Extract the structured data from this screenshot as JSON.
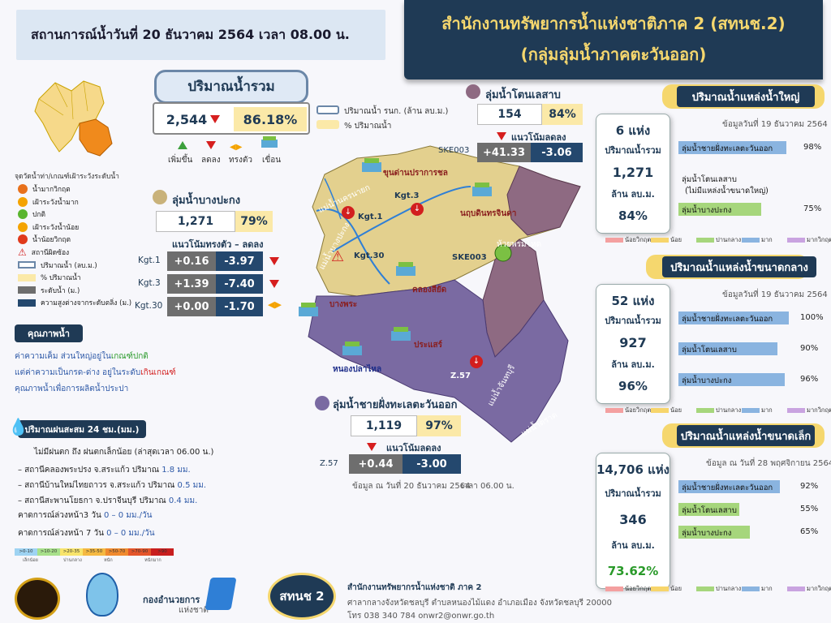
{
  "header": {
    "status_date": "สถานการณ์น้ำวันที่  20 ธันวาคม 2564 เวลา 08.00 น.",
    "org_line1": "สำนักงานทรัพยากรน้ำแห่งชาติภาค 2 (สทนช.2)",
    "org_line2": "(กลุ่มลุ่มน้ำภาคตะวันออก)"
  },
  "total": {
    "title": "ปริมาณน้ำรวม",
    "volume": "2,544",
    "percent": "86.18%",
    "legend_volume": "ปริมาณน้ำ รนก. (ล้าน ลบ.ม.)",
    "legend_percent": "% ปริมาณน้ำ",
    "trend_up": "เพิ่มขึ้น",
    "trend_down": "ลดลง",
    "trend_stable": "ทรงตัว",
    "dam": "เขื่อน"
  },
  "legend": {
    "title": "จุดวัดน้ำท่า/เกณฑ์เฝ้าระวังระดับน้ำ",
    "items": [
      {
        "label": "น้ำมากวิกฤต",
        "color": "#e8711c"
      },
      {
        "label": "เฝ้าระวังน้ำมาก",
        "color": "#f4a300"
      },
      {
        "label": "ปกติ",
        "color": "#5ab52f"
      },
      {
        "label": "เฝ้าระวังน้ำน้อย",
        "color": "#f4a300"
      },
      {
        "label": "น้ำน้อยวิกฤต",
        "color": "#e03a1c"
      },
      {
        "label": "สถานีผิดซ้อง"
      },
      {
        "label": "ปริมาณน้ำ (ลบ.ม.)"
      },
      {
        "label": "% ปริมาณน้ำ"
      },
      {
        "label": "ระดับน้ำ (ม.)"
      },
      {
        "label": "ความสูงต่างจากระดับตลิ่ง (ม.)"
      }
    ]
  },
  "water_quality": {
    "title": "คุณภาพน้ำ",
    "line1_a": "ค่าความเค็ม ส่วนใหญ่อยู่ใน",
    "line1_b": "เกณฑ์ปกติ",
    "line2_a": "แต่ค่าความเป็นกรด-ด่าง อยู่ในระดับ",
    "line2_b": "เกินเกณฑ์",
    "line3": "คุณภาพน้ำเพื่อการผลิตน้ำประปา"
  },
  "rain": {
    "title": "ปริมาณฝนสะสม 24 ชม.(มม.)",
    "summary": "ไม่มีฝนตก ถึง ฝนตกเล็กน้อย (ล่าสุดเวลา 06.00 น.)",
    "stations": [
      {
        "name": "– สถานีคลองพระปรง จ.สระแก้ว  ปริมาณ",
        "value": "1.8 มม."
      },
      {
        "name": "– สถานีบ้านใหม่ไทยถาวร จ.สระแก้ว ปริมาณ",
        "value": "0.5 มม."
      },
      {
        "name": "– สถานีสะพานโยธกา จ.ปราจีนบุรี ปริมาณ",
        "value": "0.4 มม."
      }
    ],
    "forecast3_label": "คาดการณ์ล่วงหน้า3 วัน",
    "forecast3_value": "0 – 0 มม./วัน",
    "forecast7_label": "คาดการณ์ล่วงหน้า 7 วัน",
    "forecast7_value": "0 – 0 มม./วัน",
    "scale": [
      {
        "label": ">0-10",
        "color": "#9ed3f2"
      },
      {
        "label": ">10-20",
        "color": "#a7e08a"
      },
      {
        "label": ">20-35",
        "color": "#f8e46b"
      },
      {
        "label": ">35-50",
        "color": "#f5b942"
      },
      {
        "label": ">50-70",
        "color": "#f08a2e"
      },
      {
        "label": ">70-90",
        "color": "#e4552a"
      },
      {
        "label": ">90",
        "color": "#c81e1e"
      }
    ],
    "scale_words": [
      "เล็กน้อย",
      "ปานกลาง",
      "หนัก",
      "หนักมาก"
    ]
  },
  "bangpakong": {
    "title": "ลุ่มน้ำบางปะกง",
    "volume": "1,271",
    "percent": "79%",
    "trend_title": "แนวโน้มทรงตัว – ลดลง",
    "stations": [
      {
        "code": "Kgt.1",
        "level": "+0.16",
        "diff": "-3.97"
      },
      {
        "code": "Kgt.3",
        "level": "+1.39",
        "diff": "-7.40"
      },
      {
        "code": "Kgt.30",
        "level": "+0.00",
        "diff": "-1.70"
      }
    ]
  },
  "tonlesap": {
    "title": "ลุ่มน้ำโตนเลสาบ",
    "volume": "154",
    "percent": "84%",
    "trend_title": "แนวโน้มลดลง",
    "station": {
      "code": "SKE003",
      "level": "+41.33",
      "diff": "-3.06"
    }
  },
  "coast": {
    "title": "ลุ่มน้ำชายฝั่งทะเลตะวันออก",
    "volume": "1,119",
    "percent": "97%",
    "trend_title": "แนวโน้มลดลง",
    "station": {
      "code": "Z.57",
      "level": "+0.44",
      "diff": "-3.00"
    },
    "data_note": "ข้อมูล ณ วันที่ 20 ธันวาคม 2564",
    "time_note": "เวลา 06.00 น."
  },
  "map_labels": {
    "dam1": "ขุนด่านปราการชล",
    "dam2": "นฤบดินทรจินดา",
    "dam3": "คลองสียัด",
    "dam4": "บางพระ",
    "dam5": "ประแสร์",
    "dam6": "หนองปลาไหล",
    "kgt1": "Kgt.1",
    "kgt3": "Kgt.3",
    "kgt30": "Kgt.30",
    "ske003": "SKE003",
    "z57": "Z.57",
    "river1": "แม่น้ำนครนายก",
    "river2": "แม่น้ำบางปะกง",
    "river3": "ห้วยพรมโหด",
    "river4": "แม่น้ำจันทบุรี",
    "river5": "แม่น้ำตราด"
  },
  "large": {
    "title": "ปริมาณน้ำแหล่งน้ำใหญ่",
    "data_note": "ข้อมูลวันที่ 19 ธันวาคม 2564",
    "count": "6 แห่ง",
    "label1": "ปริมาณน้ำรวม",
    "volume": "1,271",
    "unit": "ล้าน ลบ.ม.",
    "percent": "84%",
    "bars": [
      {
        "name": "ลุ่มน้ำชายฝั่งทะเลตะวันออก",
        "value": 98,
        "label": "98%"
      },
      {
        "name": "ลุ่มน้ำโตนเลสาบ",
        "note": "(ไม่มีแหล่งน้ำขนาดใหญ่)",
        "value": 0,
        "label": ""
      },
      {
        "name": "ลุ่มน้ำบางปะกง",
        "value": 75,
        "label": "75%"
      }
    ]
  },
  "medium": {
    "title": "ปริมาณน้ำแหล่งน้ำขนาดกลาง",
    "data_note": "ข้อมูลวันที่ 19 ธันวาคม 2564",
    "count": "52 แห่ง",
    "label1": "ปริมาณน้ำรวม",
    "volume": "927",
    "unit": "ล้าน ลบ.ม.",
    "percent": "96%",
    "bars": [
      {
        "name": "ลุ่มน้ำชายฝั่งทะเลตะวันออก",
        "value": 100,
        "label": "100%"
      },
      {
        "name": "ลุ่มน้ำโตนเลสาบ",
        "value": 90,
        "label": "90%"
      },
      {
        "name": "ลุ่มน้ำบางปะกง",
        "value": 96,
        "label": "96%"
      }
    ]
  },
  "small": {
    "title": "ปริมาณน้ำแหล่งน้ำขนาดเล็ก",
    "data_note": "ข้อมูล ณ วันที่ 28 พฤศจิกายน 2564",
    "count": "14,706 แห่ง",
    "label1": "ปริมาณน้ำรวม",
    "volume": "346",
    "unit": "ล้าน ลบ.ม.",
    "percent": "73.62%",
    "bars": [
      {
        "name": "ลุ่มน้ำชายฝั่งทะเลตะวันออก",
        "value": 92,
        "label": "92%"
      },
      {
        "name": "ลุ่มน้ำโตนเลสาบ",
        "value": 55,
        "label": "55%"
      },
      {
        "name": "ลุ่มน้ำบางปะกง",
        "value": 65,
        "label": "65%"
      }
    ]
  },
  "level_legend": [
    {
      "label": "น้อยวิกฤต",
      "color": "#f4a0a0"
    },
    {
      "label": "น้อย",
      "color": "#f7d56b"
    },
    {
      "label": "ปานกลาง",
      "color": "#a6d67c"
    },
    {
      "label": "มาก",
      "color": "#8ab4e0"
    },
    {
      "label": "มากวิกฤต",
      "color": "#c9a3e0"
    }
  ],
  "footer": {
    "dept": "กองอำนวยการ",
    "dept_sub": "แห่งชาติ",
    "badge": "สทนช 2",
    "office": "สำนักงานทรัพยากรน้ำแห่งชาติ ภาค 2",
    "address": "ศาลากลางจังหวัดชลบุรี ตำบลหนองไม้แดง อำเภอเมือง จังหวัดชลบุรี 20000",
    "contact": "โทร 038 340 784    onwr2@onwr.go.th"
  }
}
